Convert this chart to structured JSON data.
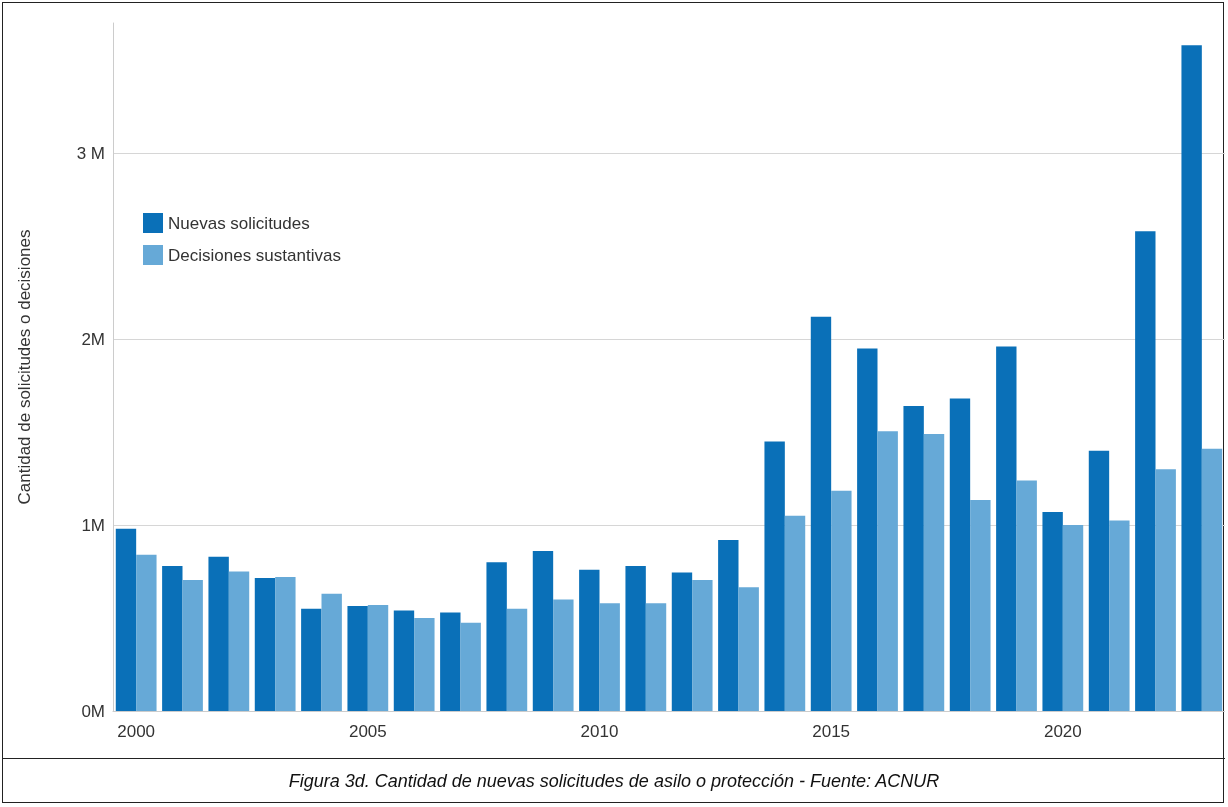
{
  "chart_data": {
    "type": "bar",
    "ylabel": "Cantidad de solicitudes o decisiones",
    "categories": [
      "2000",
      null,
      null,
      null,
      null,
      "2005",
      null,
      null,
      null,
      null,
      "2010",
      null,
      null,
      null,
      null,
      "2015",
      null,
      null,
      null,
      null,
      "2020",
      null,
      null,
      null
    ],
    "series": [
      {
        "name": "Nuevas solicitudes",
        "color": "#0a70b8",
        "values": [
          980000,
          780000,
          830000,
          715000,
          550000,
          565000,
          540000,
          530000,
          800000,
          860000,
          760000,
          780000,
          745000,
          920000,
          1450000,
          2120000,
          1950000,
          1640000,
          1680000,
          1960000,
          1070000,
          1400000,
          2580000,
          3580000
        ]
      },
      {
        "name": "Decisiones sustantivas",
        "color": "#66a9d7",
        "values": [
          840000,
          705000,
          750000,
          720000,
          630000,
          570000,
          500000,
          475000,
          550000,
          600000,
          580000,
          580000,
          705000,
          665000,
          1050000,
          1185000,
          1505000,
          1490000,
          1135000,
          1240000,
          1000000,
          1025000,
          1300000,
          1410000
        ]
      }
    ],
    "ylim": [
      0,
      3700000
    ],
    "yticks": [
      {
        "value": 0,
        "label": "0M"
      },
      {
        "value": 1000000,
        "label": "1M"
      },
      {
        "value": 2000000,
        "label": "2M"
      },
      {
        "value": 3000000,
        "label": "3 M"
      }
    ],
    "grid": "y",
    "legend": "top left",
    "annotations": [
      "Figura 3d. Cantidad de nuevas solicitudes de asilo o protección - Fuente: ACNUR"
    ]
  }
}
